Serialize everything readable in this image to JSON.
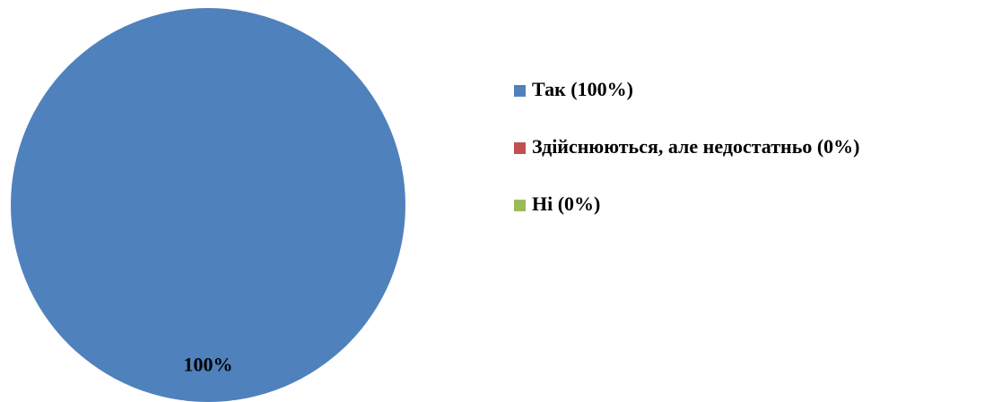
{
  "chart_data": {
    "type": "pie",
    "categories": [
      "Так (100%)",
      "Здійснюються, але недостатньо (0%)",
      "Ні (0%)"
    ],
    "values": [
      100,
      0,
      0
    ],
    "value_labels": [
      "100%",
      null,
      null
    ],
    "colors": [
      "#4f81bd",
      "#c0504d",
      "#9bbb59"
    ],
    "legend": "right"
  }
}
